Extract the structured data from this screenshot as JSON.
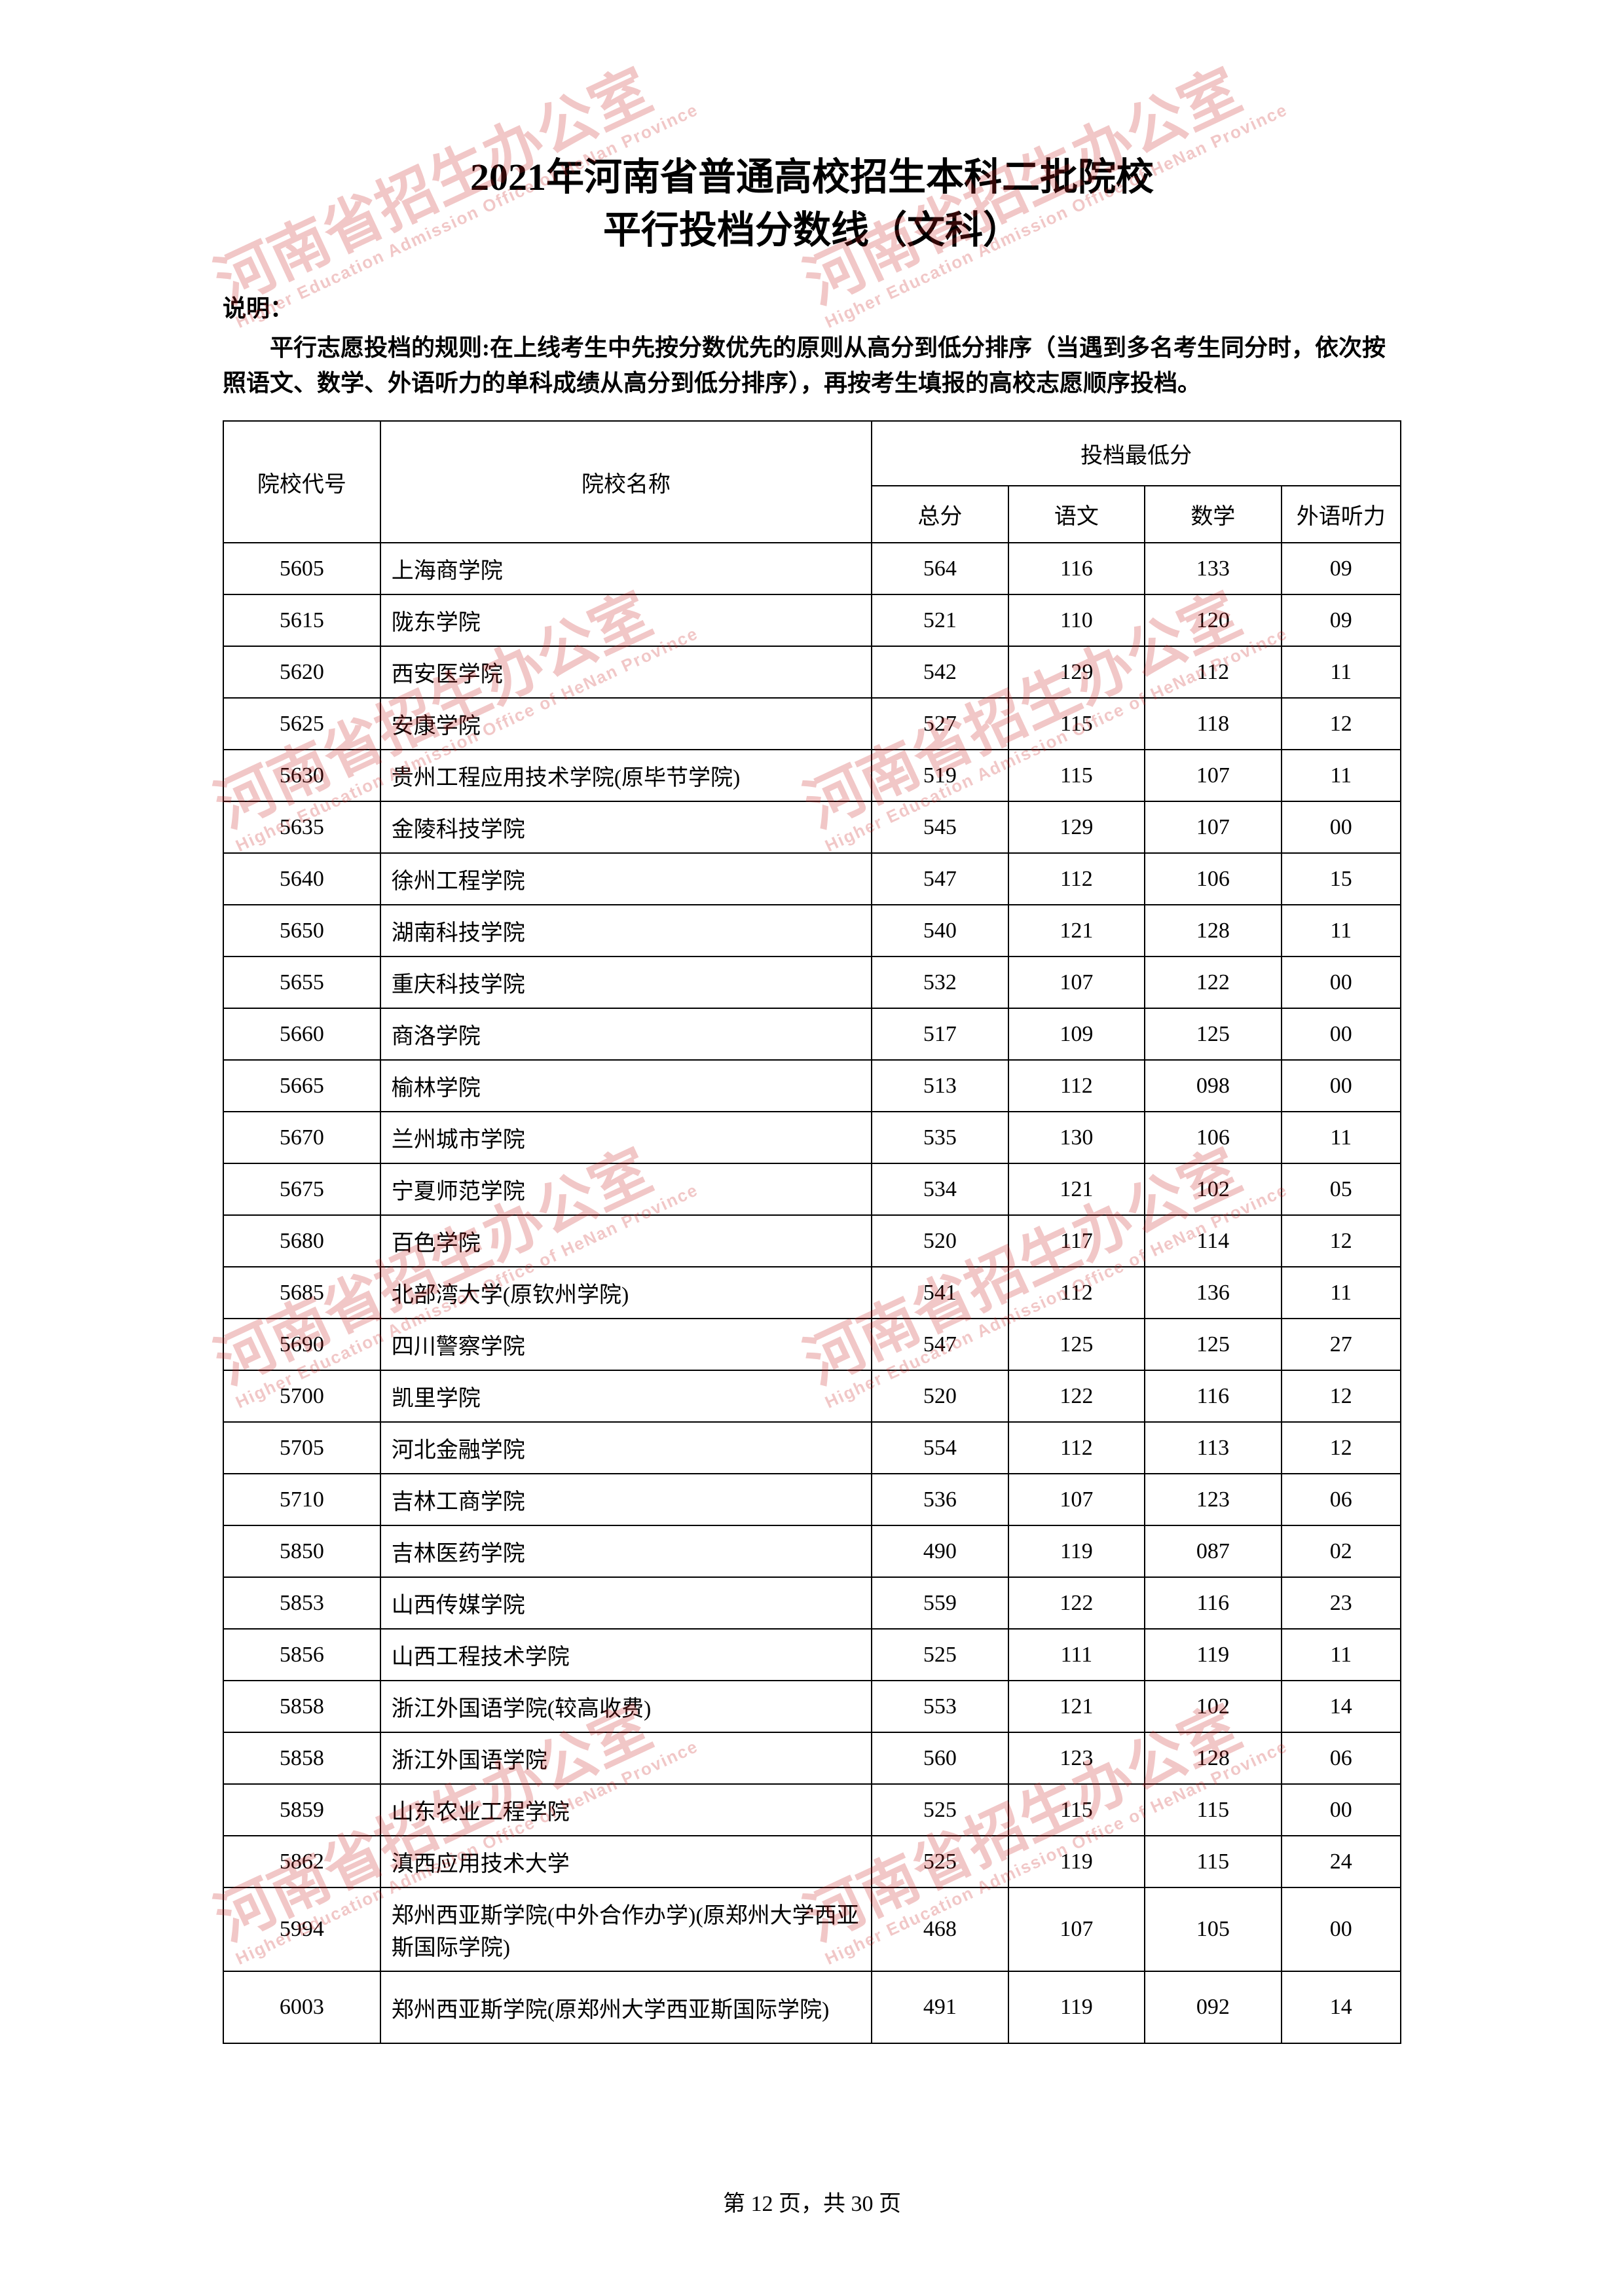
{
  "title": {
    "line1": "2021年河南省普通高校招生本科二批院校",
    "line2": "平行投档分数线（文科）"
  },
  "note": {
    "label": "说明：",
    "text": "平行志愿投档的规则:在上线考生中先按分数优先的原则从高分到低分排序（当遇到多名考生同分时，依次按照语文、数学、外语听力的单科成绩从高分到低分排序），再按考生填报的高校志愿顺序投档。"
  },
  "table": {
    "headers": {
      "code": "院校代号",
      "name": "院校名称",
      "score_group": "投档最低分",
      "total": "总分",
      "chinese": "语文",
      "math": "数学",
      "listening": "外语听力"
    },
    "rows": [
      {
        "code": "5605",
        "name": "上海商学院",
        "total": "564",
        "chinese": "116",
        "math": "133",
        "listening": "09"
      },
      {
        "code": "5615",
        "name": "陇东学院",
        "total": "521",
        "chinese": "110",
        "math": "120",
        "listening": "09"
      },
      {
        "code": "5620",
        "name": "西安医学院",
        "total": "542",
        "chinese": "129",
        "math": "112",
        "listening": "11"
      },
      {
        "code": "5625",
        "name": "安康学院",
        "total": "527",
        "chinese": "115",
        "math": "118",
        "listening": "12"
      },
      {
        "code": "5630",
        "name": "贵州工程应用技术学院(原毕节学院)",
        "total": "519",
        "chinese": "115",
        "math": "107",
        "listening": "11"
      },
      {
        "code": "5635",
        "name": "金陵科技学院",
        "total": "545",
        "chinese": "129",
        "math": "107",
        "listening": "00"
      },
      {
        "code": "5640",
        "name": "徐州工程学院",
        "total": "547",
        "chinese": "112",
        "math": "106",
        "listening": "15"
      },
      {
        "code": "5650",
        "name": "湖南科技学院",
        "total": "540",
        "chinese": "121",
        "math": "128",
        "listening": "11"
      },
      {
        "code": "5655",
        "name": "重庆科技学院",
        "total": "532",
        "chinese": "107",
        "math": "122",
        "listening": "00"
      },
      {
        "code": "5660",
        "name": "商洛学院",
        "total": "517",
        "chinese": "109",
        "math": "125",
        "listening": "00"
      },
      {
        "code": "5665",
        "name": "榆林学院",
        "total": "513",
        "chinese": "112",
        "math": "098",
        "listening": "00"
      },
      {
        "code": "5670",
        "name": "兰州城市学院",
        "total": "535",
        "chinese": "130",
        "math": "106",
        "listening": "11"
      },
      {
        "code": "5675",
        "name": "宁夏师范学院",
        "total": "534",
        "chinese": "121",
        "math": "102",
        "listening": "05"
      },
      {
        "code": "5680",
        "name": "百色学院",
        "total": "520",
        "chinese": "117",
        "math": "114",
        "listening": "12"
      },
      {
        "code": "5685",
        "name": "北部湾大学(原钦州学院)",
        "total": "541",
        "chinese": "112",
        "math": "136",
        "listening": "11"
      },
      {
        "code": "5690",
        "name": "四川警察学院",
        "total": "547",
        "chinese": "125",
        "math": "125",
        "listening": "27"
      },
      {
        "code": "5700",
        "name": "凯里学院",
        "total": "520",
        "chinese": "122",
        "math": "116",
        "listening": "12"
      },
      {
        "code": "5705",
        "name": "河北金融学院",
        "total": "554",
        "chinese": "112",
        "math": "113",
        "listening": "12"
      },
      {
        "code": "5710",
        "name": "吉林工商学院",
        "total": "536",
        "chinese": "107",
        "math": "123",
        "listening": "06"
      },
      {
        "code": "5850",
        "name": "吉林医药学院",
        "total": "490",
        "chinese": "119",
        "math": "087",
        "listening": "02"
      },
      {
        "code": "5853",
        "name": "山西传媒学院",
        "total": "559",
        "chinese": "122",
        "math": "116",
        "listening": "23"
      },
      {
        "code": "5856",
        "name": "山西工程技术学院",
        "total": "525",
        "chinese": "111",
        "math": "119",
        "listening": "11"
      },
      {
        "code": "5858",
        "name": "浙江外国语学院(较高收费)",
        "total": "553",
        "chinese": "121",
        "math": "102",
        "listening": "14"
      },
      {
        "code": "5858",
        "name": "浙江外国语学院",
        "total": "560",
        "chinese": "123",
        "math": "128",
        "listening": "06"
      },
      {
        "code": "5859",
        "name": "山东农业工程学院",
        "total": "525",
        "chinese": "115",
        "math": "115",
        "listening": "00"
      },
      {
        "code": "5862",
        "name": "滇西应用技术大学",
        "total": "525",
        "chinese": "119",
        "math": "115",
        "listening": "24"
      },
      {
        "code": "5994",
        "name": "郑州西亚斯学院(中外合作办学)(原郑州大学西亚斯国际学院)",
        "total": "468",
        "chinese": "107",
        "math": "105",
        "listening": "00",
        "tall": true
      },
      {
        "code": "6003",
        "name": "郑州西亚斯学院(原郑州大学西亚斯国际学院)",
        "total": "491",
        "chinese": "119",
        "math": "092",
        "listening": "14",
        "tall": true
      }
    ]
  },
  "footer": {
    "text": "第 12 页，共 30 页"
  },
  "watermark": {
    "main": "河南省招生办公室",
    "en": "Higher Education Admission Office of HeNan Province",
    "color": "rgba(200,30,30,0.25)"
  }
}
